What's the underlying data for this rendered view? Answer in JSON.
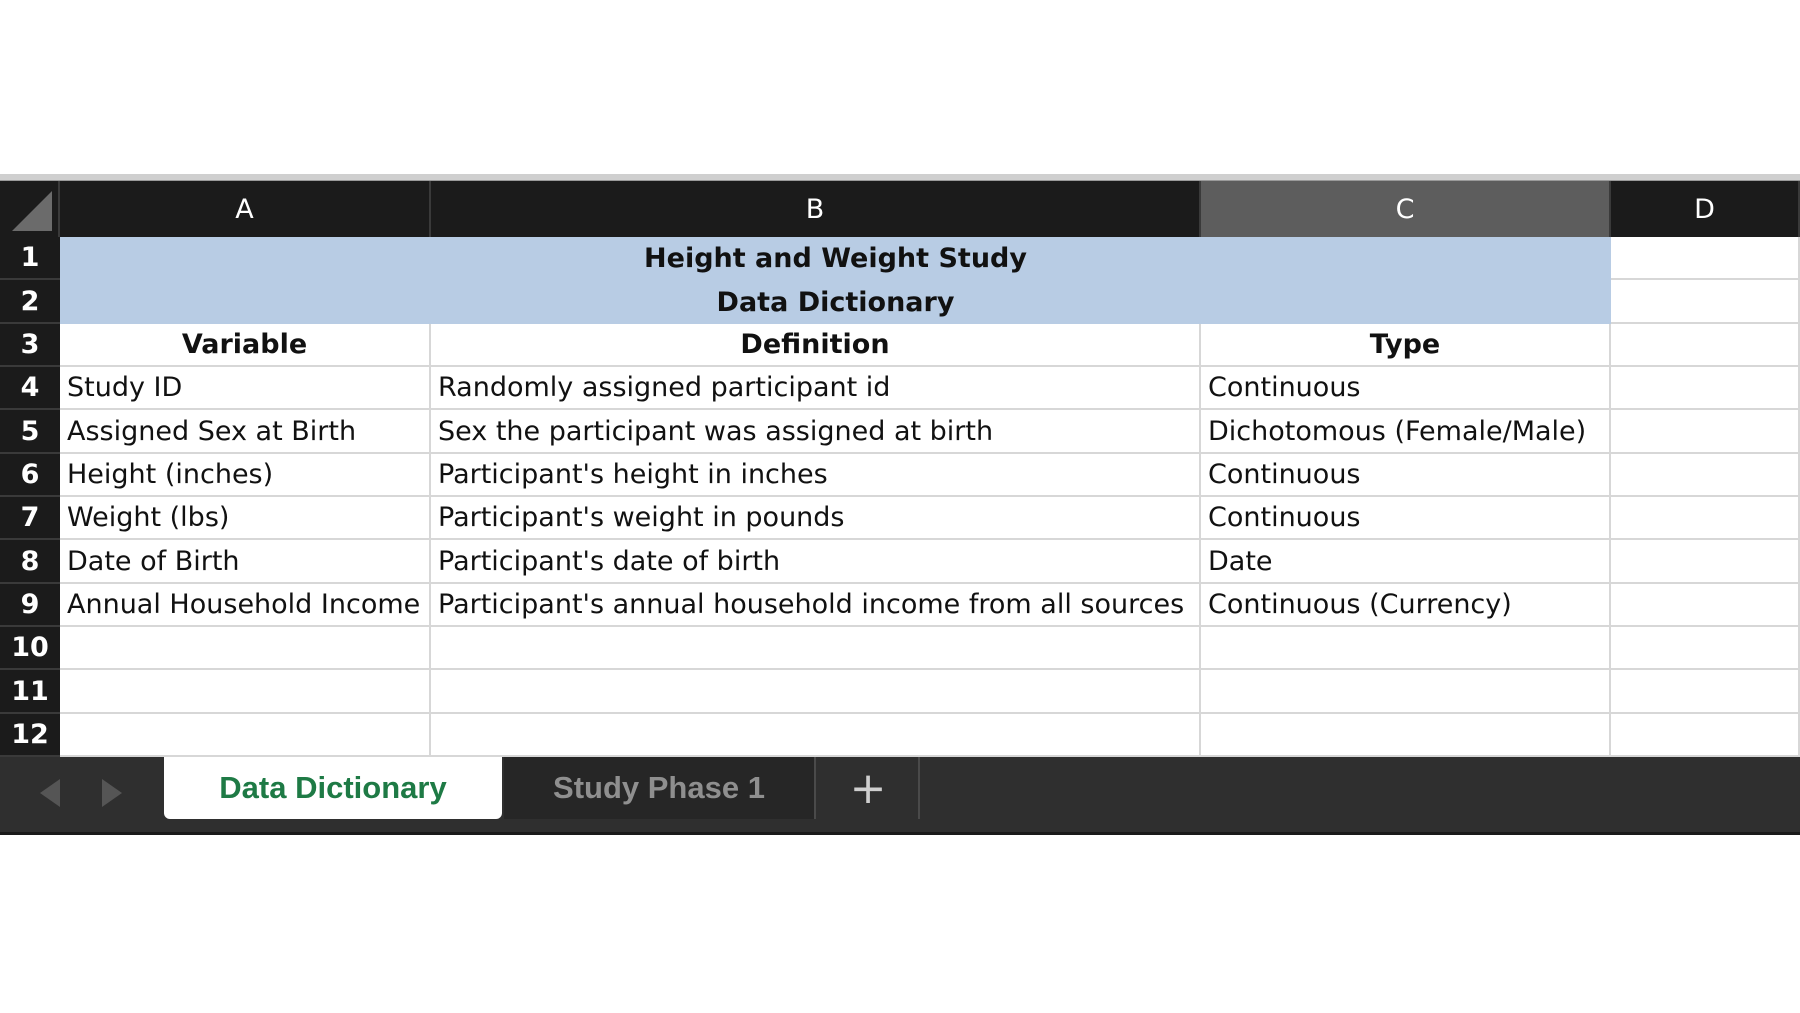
{
  "columns": [
    "A",
    "B",
    "C",
    "D"
  ],
  "selected_column": "C",
  "rows": [
    "1",
    "2",
    "3",
    "4",
    "5",
    "6",
    "7",
    "8",
    "9",
    "10",
    "11",
    "12"
  ],
  "title": {
    "line1": "Height and Weight Study",
    "line2": "Data Dictionary",
    "band_color": "#b8cce4"
  },
  "headers": {
    "variable": "Variable",
    "definition": "Definition",
    "type": "Type"
  },
  "table": [
    {
      "variable": "Study ID",
      "definition": "Randomly assigned participant id",
      "type": "Continuous"
    },
    {
      "variable": "Assigned Sex at Birth",
      "definition": "Sex the participant was assigned at birth",
      "type": "Dichotomous (Female/Male)"
    },
    {
      "variable": "Height (inches)",
      "definition": "Participant's height in inches",
      "type": "Continuous"
    },
    {
      "variable": "Weight (lbs)",
      "definition": "Participant's weight in pounds",
      "type": "Continuous"
    },
    {
      "variable": "Date of Birth",
      "definition": "Participant's date of birth",
      "type": "Date"
    },
    {
      "variable": "Annual Household Income",
      "definition": "Participant's annual household income from all sources",
      "type": "Continuous (Currency)"
    }
  ],
  "tabs": {
    "active": "Data Dictionary",
    "inactive": "Study Phase 1",
    "add": "+",
    "active_color": "#1e7a45"
  },
  "icons": {
    "prev": "triangle-left-icon",
    "next": "triangle-right-icon",
    "select_all": "select-all-corner-icon"
  }
}
